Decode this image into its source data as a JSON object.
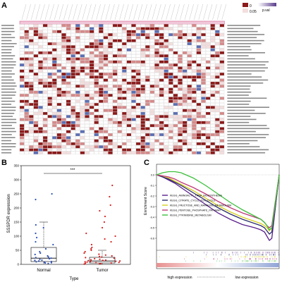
{
  "panels": {
    "a": "A",
    "b": "B",
    "c": "C"
  },
  "heatmap": {
    "legend_label": "p.val",
    "legend_ticks": [
      "0",
      "0.05"
    ],
    "colors": {
      "high": "#8b1a1a",
      "mid": "#d58a8a",
      "low": "#f3dede",
      "neg": "#5b6fb3",
      "grid": "#bfbfbf",
      "highlight": "#c94f7c"
    }
  },
  "chart_data": [
    {
      "type": "scatter",
      "title": "",
      "xlabel": "Type",
      "ylabel": "SSSPDR expression",
      "categories": [
        "Normal",
        "Tumor"
      ],
      "ylim": [
        0,
        350
      ],
      "yticks": [
        0,
        50,
        100,
        150,
        200,
        250,
        300,
        350
      ],
      "significance": "***",
      "series": [
        {
          "name": "Normal",
          "color": "#2b4fb5",
          "box": {
            "q1": 10,
            "median": 22,
            "q3": 60,
            "whisker_low": 2,
            "whisker_high": 150
          },
          "values": [
            3,
            5,
            6,
            8,
            9,
            10,
            12,
            14,
            15,
            18,
            20,
            22,
            24,
            26,
            30,
            35,
            40,
            45,
            55,
            70,
            80,
            95,
            110,
            130,
            140,
            230,
            250
          ]
        },
        {
          "name": "Tumor",
          "color": "#d62020",
          "box": {
            "q1": 5,
            "median": 12,
            "q3": 25,
            "whisker_low": 0,
            "whisker_high": 50
          },
          "values": [
            1,
            2,
            3,
            4,
            5,
            6,
            7,
            8,
            9,
            10,
            11,
            12,
            13,
            14,
            15,
            16,
            18,
            20,
            22,
            24,
            26,
            28,
            30,
            33,
            36,
            40,
            45,
            50,
            55,
            60,
            70,
            80,
            90,
            100,
            110,
            130,
            150,
            170,
            190,
            210,
            240,
            280
          ]
        }
      ]
    },
    {
      "type": "line",
      "title": "",
      "xlabel": "",
      "ylabel": "Enrichment Score",
      "axis_left_label": "high expression",
      "axis_right_label": "low expression",
      "ylim": [
        -0.7,
        0.1
      ],
      "yticks": [
        0.0,
        -0.1,
        -0.2,
        -0.3,
        -0.4,
        -0.5,
        -0.6
      ],
      "x": [
        0,
        5,
        10,
        15,
        20,
        30,
        40,
        50,
        60,
        70,
        80,
        85,
        88,
        90,
        92,
        94,
        96,
        98,
        100
      ],
      "series": [
        {
          "name": "KEGG_AMINOACYL_TRNA_BIOSYNTHESIS",
          "color": "#5a1f8c",
          "values": [
            0,
            -0.02,
            -0.05,
            -0.08,
            -0.12,
            -0.2,
            -0.28,
            -0.36,
            -0.42,
            -0.47,
            -0.5,
            -0.52,
            -0.54,
            -0.58,
            -0.62,
            -0.6,
            -0.4,
            -0.2,
            0
          ]
        },
        {
          "name": "KEGG_CITRATE_CYCLE_TCA_CYCLE",
          "color": "#2d2d6e",
          "values": [
            0,
            -0.02,
            -0.04,
            -0.07,
            -0.1,
            -0.17,
            -0.24,
            -0.31,
            -0.37,
            -0.42,
            -0.46,
            -0.48,
            -0.5,
            -0.53,
            -0.56,
            -0.54,
            -0.36,
            -0.18,
            0
          ]
        },
        {
          "name": "KEGG_FRUCTOSE_AND_MANNOSE_METABOLISM",
          "color": "#d8d020",
          "values": [
            0,
            -0.01,
            -0.03,
            -0.06,
            -0.09,
            -0.15,
            -0.22,
            -0.29,
            -0.35,
            -0.4,
            -0.44,
            -0.46,
            -0.48,
            -0.5,
            -0.53,
            -0.5,
            -0.34,
            -0.17,
            0
          ]
        },
        {
          "name": "KEGG_PENTOSE_PHOSPHATE_PATHWAY",
          "color": "#c03a7a",
          "values": [
            0,
            -0.01,
            -0.02,
            -0.04,
            -0.07,
            -0.12,
            -0.18,
            -0.25,
            -0.31,
            -0.36,
            -0.4,
            -0.42,
            -0.45,
            -0.48,
            -0.5,
            -0.48,
            -0.32,
            -0.16,
            0
          ]
        },
        {
          "name": "KEGG_PYRIMIDINE_METABOLISM",
          "color": "#3cbf3c",
          "values": [
            0,
            0.02,
            0.03,
            0.03,
            0.02,
            -0.03,
            -0.1,
            -0.18,
            -0.26,
            -0.33,
            -0.39,
            -0.42,
            -0.45,
            -0.48,
            -0.52,
            -0.5,
            -0.34,
            -0.17,
            0
          ]
        }
      ]
    }
  ]
}
